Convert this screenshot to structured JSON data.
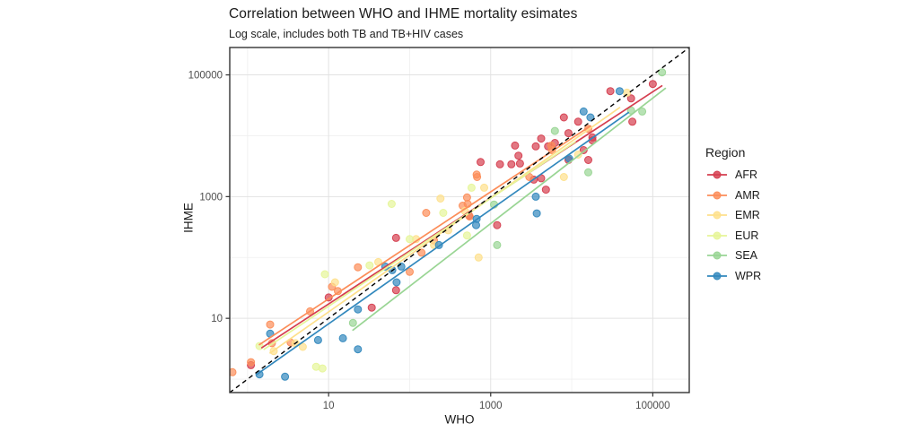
{
  "chart_data": {
    "type": "scatter",
    "title": "Correlation between WHO and IHME mortality esimates",
    "subtitle": "Log scale, includes both TB and TB+HIV cases",
    "xlabel": "WHO",
    "ylabel": "IHME",
    "x_scale": {
      "type": "log10",
      "breaks": [
        10,
        1000,
        100000
      ],
      "minor_breaks": [
        1,
        100,
        10000
      ],
      "range_log10": [
        -0.22,
        5.45
      ]
    },
    "y_scale": {
      "type": "log10",
      "breaks": [
        10,
        1000,
        100000
      ],
      "minor_breaks": [
        1,
        100,
        10000
      ],
      "range_log10": [
        -0.22,
        5.45
      ]
    },
    "legend": {
      "title": "Region",
      "position": "right"
    },
    "grid": {
      "major_color": "#e2e2e2",
      "minor_color": "#efefef",
      "border_color": "#333333",
      "tick_color": "#333333",
      "tick_label_color": "#4d4d4d"
    },
    "identity_line": {
      "style": "dashed",
      "color": "#000000",
      "x1": 0.6,
      "y1": 0.6,
      "x2": 285000,
      "y2": 285000
    },
    "series": [
      {
        "name": "AFR",
        "color": "#d53e4f",
        "trend": {
          "x1": 1.5,
          "y1": 3.3,
          "x2": 129000,
          "y2": 66000
        },
        "points": [
          [
            1.1,
            1.7
          ],
          [
            10,
            22
          ],
          [
            34,
            15
          ],
          [
            68,
            29
          ],
          [
            68,
            210
          ],
          [
            540,
            490
          ],
          [
            750,
            3700
          ],
          [
            1200,
            340
          ],
          [
            1300,
            3400
          ],
          [
            1800,
            3400
          ],
          [
            2000,
            6900
          ],
          [
            2200,
            4700
          ],
          [
            2300,
            3500
          ],
          [
            3400,
            1900
          ],
          [
            3600,
            6700
          ],
          [
            4200,
            2000
          ],
          [
            4200,
            9000
          ],
          [
            4800,
            1300
          ],
          [
            5100,
            6700
          ],
          [
            6200,
            7600
          ],
          [
            8000,
            20000
          ],
          [
            9100,
            4000
          ],
          [
            9100,
            11000
          ],
          [
            12000,
            17000
          ],
          [
            14000,
            5800
          ],
          [
            16000,
            4000
          ],
          [
            18000,
            8400
          ],
          [
            18000,
            9400
          ],
          [
            30000,
            54000
          ],
          [
            54000,
            41000
          ],
          [
            56000,
            17000
          ],
          [
            100000,
            71000
          ]
        ]
      },
      {
        "name": "AMR",
        "color": "#fc8d59",
        "trend": {
          "x1": 1.4,
          "y1": 3.7,
          "x2": 17000,
          "y2": 14500
        },
        "points": [
          [
            0.65,
            1.3
          ],
          [
            1.1,
            1.9
          ],
          [
            1.9,
            7.9
          ],
          [
            2.0,
            3.9
          ],
          [
            3.4,
            4.0
          ],
          [
            5.9,
            13
          ],
          [
            11,
            33
          ],
          [
            13,
            28
          ],
          [
            23,
            69
          ],
          [
            100,
            58
          ],
          [
            140,
            120
          ],
          [
            160,
            540
          ],
          [
            200,
            190
          ],
          [
            450,
            710
          ],
          [
            510,
            970
          ],
          [
            520,
            760
          ],
          [
            550,
            470
          ],
          [
            670,
            2300
          ],
          [
            680,
            2100
          ],
          [
            3000,
            2100
          ],
          [
            5600,
            6900
          ],
          [
            5700,
            5800
          ],
          [
            16000,
            13000
          ]
        ]
      },
      {
        "name": "EMR",
        "color": "#fee08b",
        "trend": {
          "x1": 1.9,
          "y1": 2.7,
          "x2": 39000,
          "y2": 29000
        },
        "points": [
          [
            2.1,
            2.9
          ],
          [
            3.9,
            3.9
          ],
          [
            4.8,
            3.4
          ],
          [
            12,
            39
          ],
          [
            41,
            84
          ],
          [
            120,
            200
          ],
          [
            200,
            160
          ],
          [
            240,
            930
          ],
          [
            300,
            280
          ],
          [
            480,
            580
          ],
          [
            710,
            100
          ],
          [
            830,
            1400
          ],
          [
            8000,
            2100
          ],
          [
            12000,
            4900
          ],
          [
            48000,
            51000
          ]
        ]
      },
      {
        "name": "EUR",
        "color": "#e6f598",
        "trend": {
          "x1": 1.6,
          "y1": 3.1,
          "x2": 11000,
          "y2": 7900
        },
        "points": [
          [
            1.4,
            3.5
          ],
          [
            7,
            1.6
          ],
          [
            8.4,
            1.5
          ],
          [
            9,
            53
          ],
          [
            32,
            74
          ],
          [
            60,
            760
          ],
          [
            100,
            200
          ],
          [
            260,
            540
          ],
          [
            510,
            230
          ],
          [
            580,
            1400
          ]
        ]
      },
      {
        "name": "SEA",
        "color": "#99d594",
        "trend": {
          "x1": 20,
          "y1": 6.4,
          "x2": 143000,
          "y2": 60000
        },
        "points": [
          [
            20,
            8.4
          ],
          [
            1100,
            740
          ],
          [
            1200,
            160
          ],
          [
            6200,
            12000
          ],
          [
            16000,
            2500
          ],
          [
            54000,
            26000
          ],
          [
            74000,
            25000
          ],
          [
            130000,
            110000
          ]
        ]
      },
      {
        "name": "WPR",
        "color": "#3288bd",
        "trend": {
          "x1": 1.3,
          "y1": 1.2,
          "x2": 50000,
          "y2": 24000
        },
        "points": [
          [
            1.4,
            1.2
          ],
          [
            1.9,
            5.6
          ],
          [
            2.9,
            1.1
          ],
          [
            7.4,
            4.4
          ],
          [
            15,
            4.7
          ],
          [
            23,
            3.1
          ],
          [
            23,
            14
          ],
          [
            50,
            71
          ],
          [
            61,
            62
          ],
          [
            69,
            39
          ],
          [
            79,
            71
          ],
          [
            230,
            160
          ],
          [
            660,
            340
          ],
          [
            670,
            430
          ],
          [
            3600,
            1000
          ],
          [
            3700,
            530
          ],
          [
            9300,
            4200
          ],
          [
            14000,
            25000
          ],
          [
            17000,
            20000
          ],
          [
            39000,
            54000
          ]
        ]
      }
    ]
  }
}
